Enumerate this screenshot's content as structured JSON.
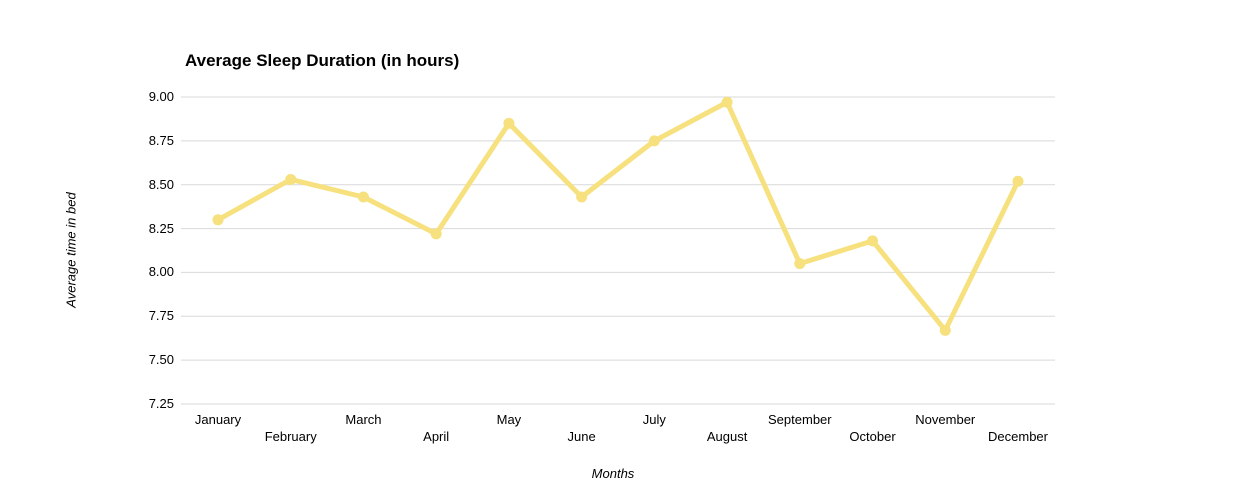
{
  "chart_data": {
    "type": "line",
    "title": "Average Sleep Duration (in hours)",
    "xlabel": "Months",
    "ylabel": "Average time in bed",
    "categories": [
      "January",
      "February",
      "March",
      "April",
      "May",
      "June",
      "July",
      "August",
      "September",
      "October",
      "November",
      "December"
    ],
    "values": [
      8.3,
      8.53,
      8.43,
      8.22,
      8.85,
      8.43,
      8.75,
      8.97,
      8.05,
      8.18,
      7.67,
      8.52
    ],
    "ylim": [
      7.25,
      9.0
    ],
    "ytick_step": 0.25,
    "ytick_labels": [
      "9.00",
      "8.75",
      "8.50",
      "8.25",
      "8.00",
      "7.75",
      "7.50",
      "7.25"
    ],
    "grid": true,
    "legend": "none",
    "x_labels_staggered": true,
    "colors": {
      "line": "#F6E17E",
      "marker": "#F6E17E",
      "gridline": "#D9D9D9",
      "text": "#000000",
      "background": "#FFFFFF"
    }
  }
}
